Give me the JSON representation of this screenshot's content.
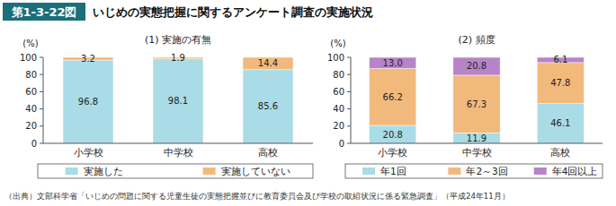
{
  "header": {
    "label": "第1-3-22図",
    "title": "いじめの実態把握に関するアンケート調査の実施状況"
  },
  "source": "（出典）文部科学省「いじめの問題に関する児童生徒の実態把握並びに教育委員会及び学校の取組状況に係る緊急調査」（平成24年11月）",
  "chart_data": [
    {
      "type": "bar",
      "title": "(1) 実施の有無",
      "y_label": "(%)",
      "stacked": true,
      "data_labels": true,
      "grid": false,
      "legend": "bottom",
      "categories": [
        "小学校",
        "中学校",
        "高校"
      ],
      "series": [
        {
          "name": "実施した",
          "color": "#a9dce6",
          "values": [
            96.8,
            98.1,
            85.6
          ]
        },
        {
          "name": "実施していない",
          "color": "#f2b97c",
          "values": [
            3.2,
            1.9,
            14.4
          ]
        }
      ],
      "ylim": [
        0,
        100
      ],
      "yticks": [
        0,
        20,
        40,
        60,
        80,
        100
      ]
    },
    {
      "type": "bar",
      "title": "(2) 頻度",
      "y_label": "(%)",
      "stacked": true,
      "data_labels": true,
      "grid": false,
      "legend": "bottom",
      "categories": [
        "小学校",
        "中学校",
        "高校"
      ],
      "series": [
        {
          "name": "年1回",
          "color": "#a9dce6",
          "values": [
            20.8,
            11.9,
            46.1
          ]
        },
        {
          "name": "年2～3回",
          "color": "#f2b97c",
          "values": [
            66.2,
            67.3,
            47.8
          ]
        },
        {
          "name": "年4回以上",
          "color": "#b784c8",
          "values": [
            13.0,
            20.8,
            6.1
          ],
          "value_labels": [
            "13.0",
            "20.8",
            "6.1"
          ]
        }
      ],
      "ylim": [
        0,
        100
      ],
      "yticks": [
        0,
        20,
        40,
        60,
        80,
        100
      ]
    }
  ]
}
